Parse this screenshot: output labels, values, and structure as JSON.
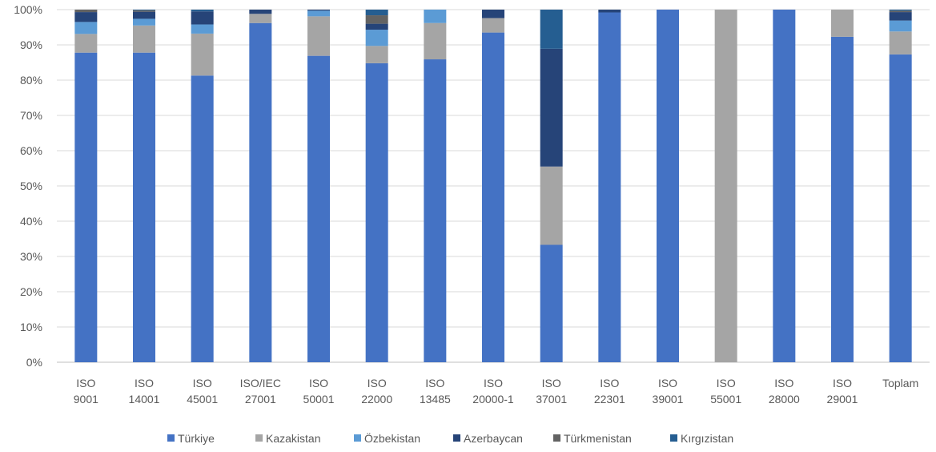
{
  "chart_data": {
    "type": "bar",
    "stacked": true,
    "percent": true,
    "ylim": [
      0,
      100
    ],
    "yticks": [
      "0%",
      "10%",
      "20%",
      "30%",
      "40%",
      "50%",
      "60%",
      "70%",
      "80%",
      "90%",
      "100%"
    ],
    "categories": [
      [
        "ISO",
        "9001"
      ],
      [
        "ISO",
        "14001"
      ],
      [
        "ISO",
        "45001"
      ],
      [
        "ISO/IEC",
        "27001"
      ],
      [
        "ISO",
        "50001"
      ],
      [
        "ISO",
        "22000"
      ],
      [
        "ISO",
        "13485"
      ],
      [
        "ISO",
        "20000-1"
      ],
      [
        "ISO",
        "37001"
      ],
      [
        "ISO",
        "22301"
      ],
      [
        "ISO",
        "39001"
      ],
      [
        "ISO",
        "55001"
      ],
      [
        "ISO",
        "28000"
      ],
      [
        "ISO",
        "29001"
      ],
      [
        "Toplam",
        ""
      ]
    ],
    "legend_position": "bottom",
    "grid": true,
    "series": [
      {
        "name": "Türkiye",
        "color": "#4472C4",
        "values": [
          87.8,
          87.8,
          81.3,
          96.2,
          86.9,
          84.8,
          85.9,
          93.5,
          33.3,
          99.2,
          100,
          0,
          100,
          92.3,
          87.3
        ]
      },
      {
        "name": "Kazakistan",
        "color": "#A5A5A5",
        "values": [
          5.3,
          7.7,
          11.9,
          2.6,
          11.2,
          4.9,
          10.3,
          4.1,
          22.2,
          0,
          0,
          100,
          0,
          7.7,
          6.5
        ]
      },
      {
        "name": "Özbekistan",
        "color": "#5B9BD5",
        "values": [
          3.4,
          1.9,
          2.6,
          0,
          1.6,
          4.6,
          3.8,
          0,
          0,
          0,
          0,
          0,
          0,
          0,
          3.1
        ]
      },
      {
        "name": "Azerbaycan",
        "color": "#264478",
        "values": [
          2.8,
          2.0,
          3.7,
          1.2,
          0.3,
          1.7,
          0,
          2.4,
          33.4,
          0.8,
          0,
          0,
          0,
          0,
          2.4
        ]
      },
      {
        "name": "Türkmenistan",
        "color": "#636363",
        "values": [
          0.7,
          0.4,
          0,
          0,
          0,
          2.4,
          0,
          0,
          0,
          0,
          0,
          0,
          0,
          0,
          0.4
        ]
      },
      {
        "name": "Kırgızistan",
        "color": "#255E91",
        "values": [
          0,
          0.2,
          0.5,
          0,
          0,
          1.6,
          0,
          0,
          11.1,
          0,
          0,
          0,
          0,
          0,
          0.3
        ]
      }
    ]
  }
}
